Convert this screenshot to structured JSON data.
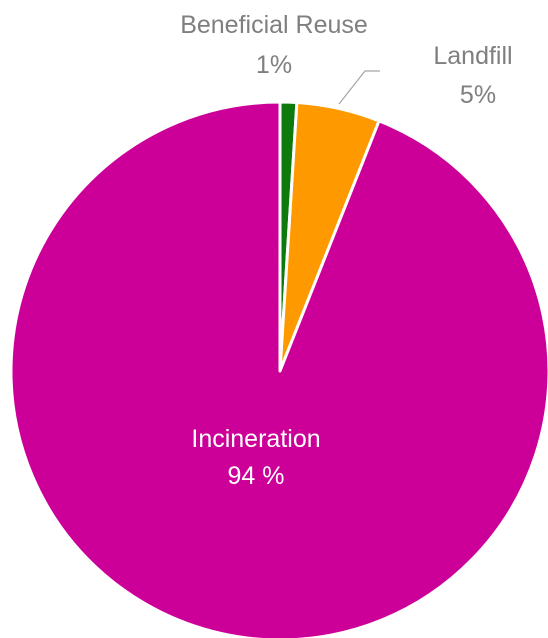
{
  "chart_data": {
    "type": "pie",
    "title": "",
    "slices": [
      {
        "name": "Beneficial Reuse",
        "value": 1,
        "label": "1%",
        "color": "#0e7a0d"
      },
      {
        "name": "Landfill",
        "value": 5,
        "label": "5%",
        "color": "#ff9900"
      },
      {
        "name": "Incineration",
        "value": 94,
        "label": "94 %",
        "color": "#cc0099"
      }
    ],
    "start_angle_deg": 0,
    "direction": "clockwise",
    "legend": "none",
    "label_color": "#7f7f7f",
    "inner_label_color": "#ffffff"
  }
}
